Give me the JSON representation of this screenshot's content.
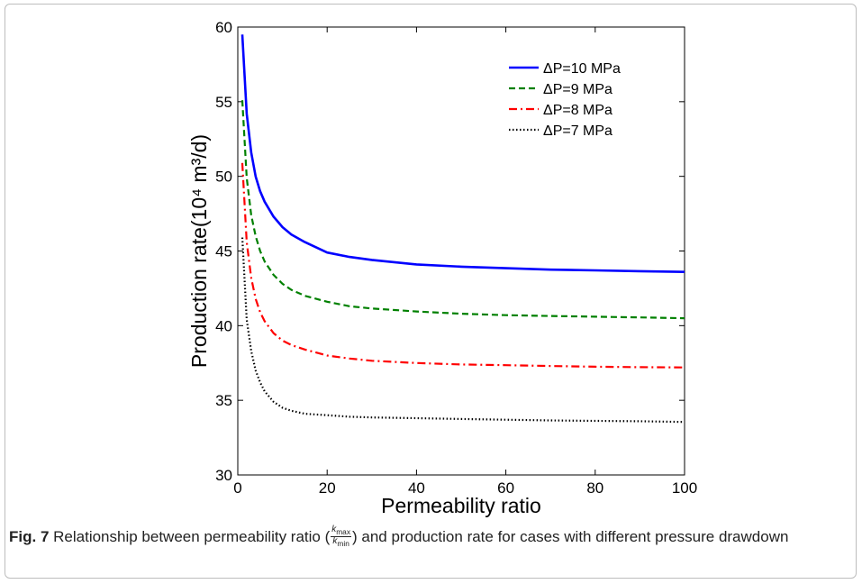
{
  "figure": {
    "caption_label": "Fig. 7",
    "caption_text_before": "Relationship between permeability ratio (",
    "caption_fraction": {
      "num_var": "k",
      "num_sub": "max",
      "den_var": "k",
      "den_sub": "min"
    },
    "caption_text_after": ") and production rate for cases with different pressure drawdown"
  },
  "chart_data": {
    "type": "line",
    "title": "",
    "xlabel": "Permeability ratio",
    "ylabel": "Production rate(10⁴ m³/d)",
    "xlim": [
      0,
      100
    ],
    "ylim": [
      30,
      60
    ],
    "xticks": [
      0,
      20,
      40,
      60,
      80,
      100
    ],
    "yticks": [
      30,
      35,
      40,
      45,
      50,
      55,
      60
    ],
    "grid": false,
    "legend_position": "top-right",
    "x": [
      1,
      2,
      3,
      4,
      5,
      6,
      8,
      10,
      12,
      15,
      20,
      25,
      30,
      40,
      50,
      60,
      70,
      80,
      90,
      100
    ],
    "series": [
      {
        "name": "ΔP=10 MPa",
        "color": "#0000ff",
        "style": "solid",
        "values": [
          59.5,
          54.2,
          51.6,
          50.0,
          49.0,
          48.3,
          47.3,
          46.6,
          46.1,
          45.6,
          44.9,
          44.6,
          44.4,
          44.1,
          43.95,
          43.85,
          43.75,
          43.7,
          43.65,
          43.6
        ]
      },
      {
        "name": "ΔP=9 MPa",
        "color": "#008000",
        "style": "dashed",
        "values": [
          55.1,
          49.9,
          47.4,
          46.0,
          45.0,
          44.3,
          43.4,
          42.8,
          42.4,
          42.0,
          41.6,
          41.3,
          41.15,
          40.95,
          40.8,
          40.7,
          40.65,
          40.6,
          40.55,
          40.5
        ]
      },
      {
        "name": "ΔP=8 MPa",
        "color": "#ff0000",
        "style": "dashdot",
        "values": [
          50.9,
          45.6,
          43.2,
          41.8,
          40.9,
          40.3,
          39.5,
          39.0,
          38.7,
          38.4,
          38.0,
          37.8,
          37.65,
          37.5,
          37.4,
          37.35,
          37.3,
          37.25,
          37.22,
          37.2
        ]
      },
      {
        "name": "ΔP=7 MPa",
        "color": "#000000",
        "style": "dotted",
        "values": [
          45.9,
          40.4,
          38.3,
          37.0,
          36.2,
          35.6,
          34.9,
          34.5,
          34.3,
          34.1,
          34.0,
          33.9,
          33.85,
          33.8,
          33.75,
          33.7,
          33.65,
          33.62,
          33.6,
          33.55
        ]
      }
    ]
  }
}
